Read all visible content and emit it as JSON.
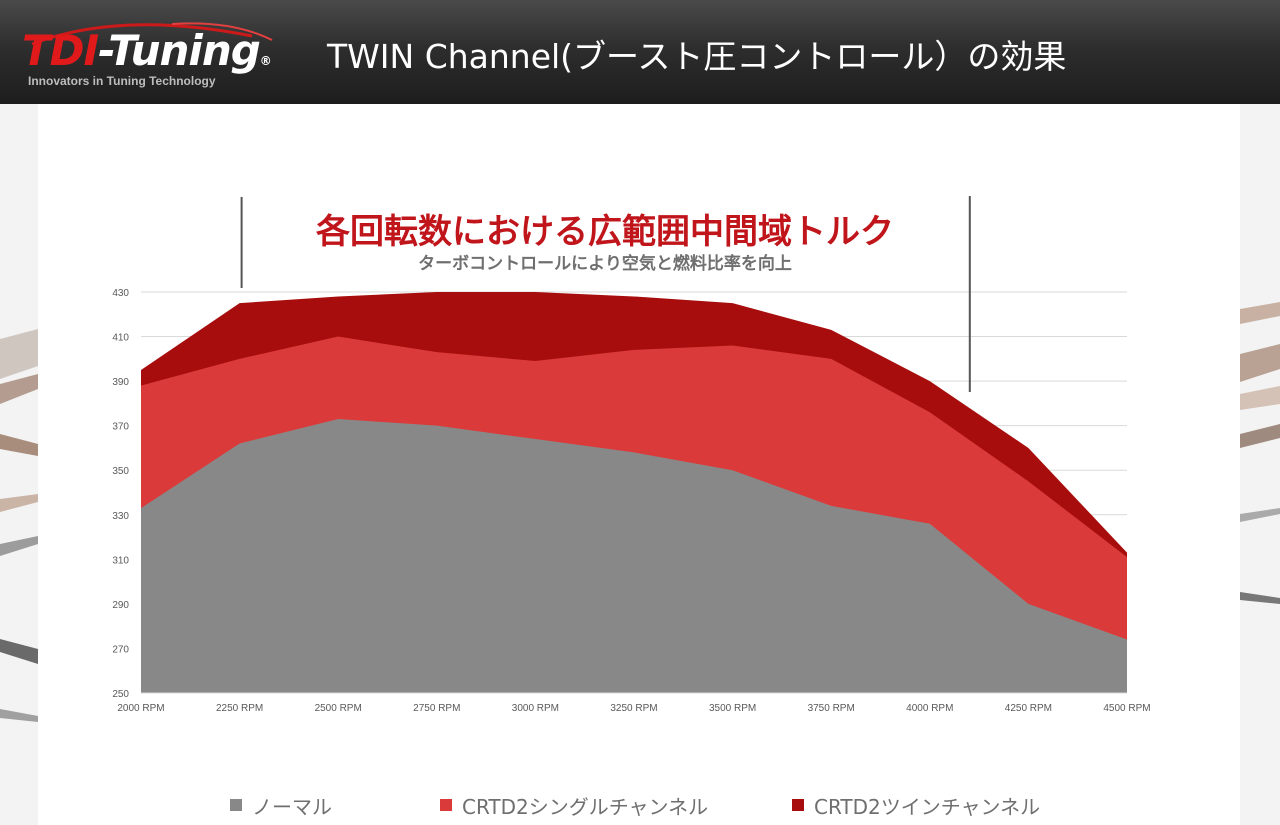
{
  "header": {
    "logo_text_red": "TDI",
    "logo_text_white": "-Tuning",
    "logo_registered": "®",
    "logo_tagline": "Innovators in Tuning Technology",
    "title": "TWIN Channel(ブースト圧コントロール）の効果"
  },
  "colors": {
    "header_bg": "#2a2a2a",
    "accent_red": "#c0151b",
    "normal_gray": "#888888",
    "single_red": "#db3a3a",
    "twin_darkred": "#a80d0d"
  },
  "chart_data": {
    "type": "area",
    "title": "各回転数における広範囲中間域トルク",
    "subtitle": "ターボコントロールにより空気と燃料比率を向上",
    "categories": [
      "2000 RPM",
      "2250 RPM",
      "2500 RPM",
      "2750 RPM",
      "3000 RPM",
      "3250 RPM",
      "3500 RPM",
      "3750 RPM",
      "4000 RPM",
      "4250 RPM",
      "4500 RPM"
    ],
    "series": [
      {
        "name": "ノーマル",
        "color": "#888888",
        "values": [
          333,
          362,
          373,
          370,
          364,
          358,
          350,
          334,
          326,
          290,
          274
        ]
      },
      {
        "name": "CRTD2シングルチャンネル",
        "color": "#db3a3a",
        "values": [
          388,
          400,
          410,
          403,
          399,
          404,
          406,
          400,
          376,
          345,
          311
        ]
      },
      {
        "name": "CRTD2ツインチャンネル",
        "color": "#a80d0d",
        "values": [
          395,
          425,
          428,
          430,
          430,
          428,
          425,
          413,
          390,
          360,
          313
        ]
      }
    ],
    "yticks": [
      250,
      270,
      290,
      310,
      330,
      350,
      370,
      390,
      410,
      430
    ],
    "ylim": [
      250,
      430
    ],
    "grid": true,
    "legend_position": "bottom",
    "highlight_range": [
      "2250 RPM",
      "4000 RPM"
    ]
  }
}
